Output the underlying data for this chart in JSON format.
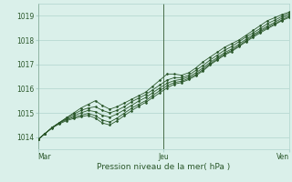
{
  "title": "",
  "xlabel": "Pression niveau de la mer( hPa )",
  "background_color": "#daf0ea",
  "plot_bg_color": "#daf0ea",
  "grid_color": "#b0d4cc",
  "line_color": "#2a572a",
  "marker_color": "#2a572a",
  "ylim": [
    1013.5,
    1019.5
  ],
  "yticks": [
    1014,
    1015,
    1016,
    1017,
    1018,
    1019
  ],
  "xtick_labels": [
    "Mar",
    "Jeu",
    "Ven"
  ],
  "xtick_positions": [
    0.0,
    0.5,
    1.0
  ],
  "series": [
    [
      1013.9,
      1014.15,
      1014.4,
      1014.6,
      1014.8,
      1015.0,
      1015.2,
      1015.35,
      1015.5,
      1015.3,
      1015.15,
      1015.25,
      1015.4,
      1015.55,
      1015.7,
      1015.85,
      1016.1,
      1016.35,
      1016.6,
      1016.6,
      1016.55,
      1016.65,
      1016.85,
      1017.1,
      1017.3,
      1017.5,
      1017.7,
      1017.85,
      1018.0,
      1018.2,
      1018.4,
      1018.6,
      1018.8,
      1018.92,
      1019.05,
      1019.15
    ],
    [
      1013.9,
      1014.15,
      1014.4,
      1014.6,
      1014.8,
      1014.95,
      1015.1,
      1015.2,
      1015.25,
      1015.1,
      1015.0,
      1015.1,
      1015.25,
      1015.45,
      1015.6,
      1015.75,
      1015.95,
      1016.15,
      1016.35,
      1016.45,
      1016.45,
      1016.55,
      1016.75,
      1016.95,
      1017.18,
      1017.38,
      1017.58,
      1017.73,
      1017.93,
      1018.13,
      1018.3,
      1018.48,
      1018.68,
      1018.82,
      1018.97,
      1019.1
    ],
    [
      1013.9,
      1014.15,
      1014.4,
      1014.6,
      1014.75,
      1014.88,
      1015.0,
      1015.1,
      1015.05,
      1014.9,
      1014.82,
      1014.95,
      1015.12,
      1015.3,
      1015.48,
      1015.63,
      1015.83,
      1016.03,
      1016.22,
      1016.33,
      1016.38,
      1016.48,
      1016.65,
      1016.85,
      1017.08,
      1017.28,
      1017.48,
      1017.63,
      1017.83,
      1018.03,
      1018.22,
      1018.4,
      1018.58,
      1018.73,
      1018.9,
      1019.03
    ],
    [
      1013.9,
      1014.15,
      1014.4,
      1014.58,
      1014.72,
      1014.82,
      1014.9,
      1014.98,
      1014.88,
      1014.7,
      1014.62,
      1014.78,
      1014.98,
      1015.18,
      1015.35,
      1015.5,
      1015.72,
      1015.92,
      1016.12,
      1016.25,
      1016.3,
      1016.42,
      1016.58,
      1016.78,
      1017.02,
      1017.22,
      1017.42,
      1017.57,
      1017.77,
      1017.97,
      1018.17,
      1018.35,
      1018.52,
      1018.67,
      1018.83,
      1018.97
    ],
    [
      1013.9,
      1014.15,
      1014.38,
      1014.55,
      1014.68,
      1014.77,
      1014.84,
      1014.9,
      1014.78,
      1014.58,
      1014.5,
      1014.67,
      1014.88,
      1015.08,
      1015.27,
      1015.43,
      1015.63,
      1015.83,
      1016.03,
      1016.18,
      1016.25,
      1016.37,
      1016.53,
      1016.73,
      1016.98,
      1017.18,
      1017.38,
      1017.53,
      1017.73,
      1017.93,
      1018.12,
      1018.3,
      1018.47,
      1018.63,
      1018.8,
      1018.93
    ]
  ]
}
